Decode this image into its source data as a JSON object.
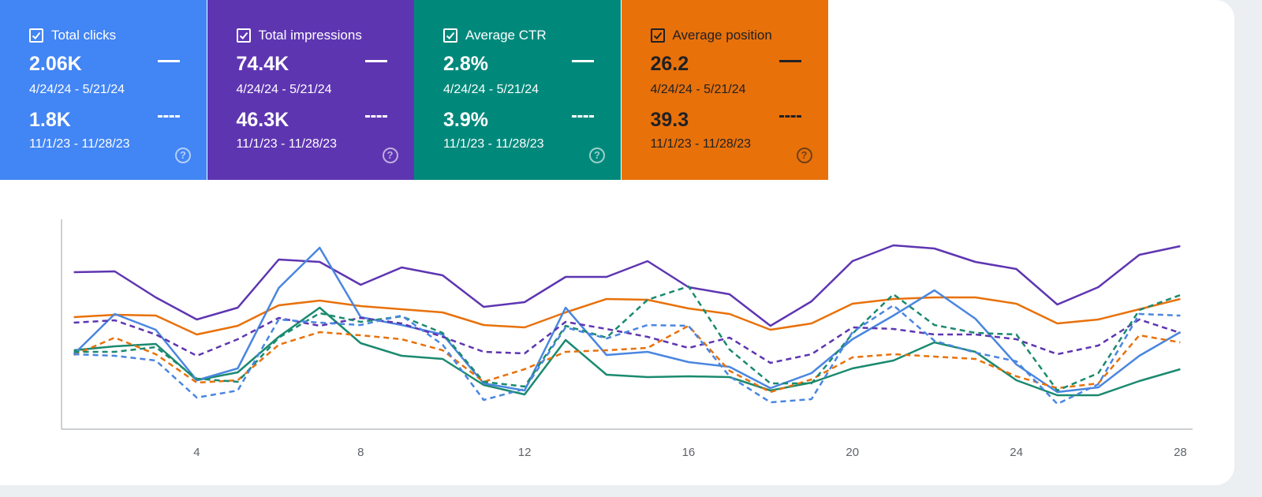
{
  "cards": [
    {
      "title": "Total clicks",
      "current": {
        "value": "2.06K",
        "range": "4/24/24 - 5/21/24"
      },
      "previous": {
        "value": "1.8K",
        "range": "11/1/23 - 11/28/23"
      },
      "color": "#4285f4",
      "text_color": "#ffffff"
    },
    {
      "title": "Total impressions",
      "current": {
        "value": "74.4K",
        "range": "4/24/24 - 5/21/24"
      },
      "previous": {
        "value": "46.3K",
        "range": "11/1/23 - 11/28/23"
      },
      "color": "#5e35b1",
      "text_color": "#ffffff"
    },
    {
      "title": "Average CTR",
      "current": {
        "value": "2.8%",
        "range": "4/24/24 - 5/21/24"
      },
      "previous": {
        "value": "3.9%",
        "range": "11/1/23 - 11/28/23"
      },
      "color": "#00897b",
      "text_color": "#ffffff"
    },
    {
      "title": "Average position",
      "current": {
        "value": "26.2",
        "range": "4/24/24 - 5/21/24"
      },
      "previous": {
        "value": "39.3",
        "range": "11/1/23 - 11/28/23"
      },
      "color": "#e8710a",
      "text_color": "#202124"
    }
  ],
  "chart_data": {
    "type": "line",
    "x": [
      1,
      2,
      3,
      4,
      5,
      6,
      7,
      8,
      9,
      10,
      11,
      12,
      13,
      14,
      15,
      16,
      17,
      18,
      19,
      20,
      21,
      22,
      23,
      24,
      25,
      26,
      27,
      28
    ],
    "xlim": [
      0.7,
      28.3
    ],
    "xticks": [
      4,
      8,
      12,
      16,
      20,
      24,
      28
    ],
    "ylim": [
      0,
      266
    ],
    "series": [
      {
        "color": "#5e35b1",
        "dashed": false,
        "values": [
          199,
          200,
          167,
          139,
          154,
          215,
          212,
          183,
          205,
          195,
          155,
          161,
          193,
          193,
          213,
          180,
          171,
          131,
          162,
          213,
          233,
          229,
          212,
          203,
          158,
          180,
          221,
          232
        ]
      },
      {
        "color": "#e8710a",
        "dashed": false,
        "values": [
          142,
          145,
          144,
          120,
          131,
          157,
          163,
          156,
          152,
          148,
          132,
          129,
          148,
          165,
          164,
          153,
          146,
          126,
          134,
          159,
          165,
          167,
          167,
          159,
          134,
          139,
          152,
          165
        ]
      },
      {
        "color": "#1a8a6f",
        "dashed": false,
        "values": [
          100,
          105,
          108,
          62,
          72,
          117,
          154,
          109,
          93,
          89,
          56,
          44,
          113,
          69,
          66,
          67,
          66,
          49,
          59,
          77,
          87,
          110,
          98,
          62,
          43,
          43,
          61,
          76
        ]
      },
      {
        "color": "#4a86e0",
        "dashed": false,
        "values": [
          95,
          146,
          126,
          62,
          77,
          179,
          230,
          142,
          132,
          120,
          58,
          49,
          154,
          94,
          98,
          85,
          79,
          52,
          71,
          114,
          144,
          176,
          140,
          82,
          47,
          53,
          93,
          123
        ]
      },
      {
        "color": "#5e35b1",
        "dashed": true,
        "values": [
          135,
          138,
          120,
          93,
          114,
          141,
          131,
          141,
          134,
          117,
          98,
          96,
          136,
          127,
          117,
          103,
          116,
          84,
          95,
          129,
          127,
          120,
          120,
          114,
          95,
          106,
          139,
          122
        ]
      },
      {
        "color": "#e8710a",
        "dashed": true,
        "values": [
          94,
          116,
          95,
          59,
          62,
          107,
          123,
          119,
          114,
          100,
          60,
          76,
          98,
          100,
          103,
          131,
          74,
          47,
          63,
          91,
          95,
          92,
          89,
          67,
          52,
          58,
          119,
          110
        ]
      },
      {
        "color": "#1a8a6f",
        "dashed": true,
        "values": [
          98,
          98,
          104,
          64,
          60,
          116,
          147,
          136,
          143,
          122,
          60,
          54,
          131,
          116,
          164,
          181,
          101,
          58,
          58,
          121,
          171,
          132,
          122,
          120,
          49,
          71,
          151,
          170
        ]
      },
      {
        "color": "#4a86e0",
        "dashed": true,
        "values": [
          95,
          93,
          87,
          40,
          49,
          139,
          135,
          132,
          144,
          107,
          37,
          51,
          129,
          115,
          132,
          131,
          67,
          34,
          38,
          123,
          157,
          112,
          97,
          86,
          32,
          57,
          146,
          144
        ]
      }
    ]
  }
}
